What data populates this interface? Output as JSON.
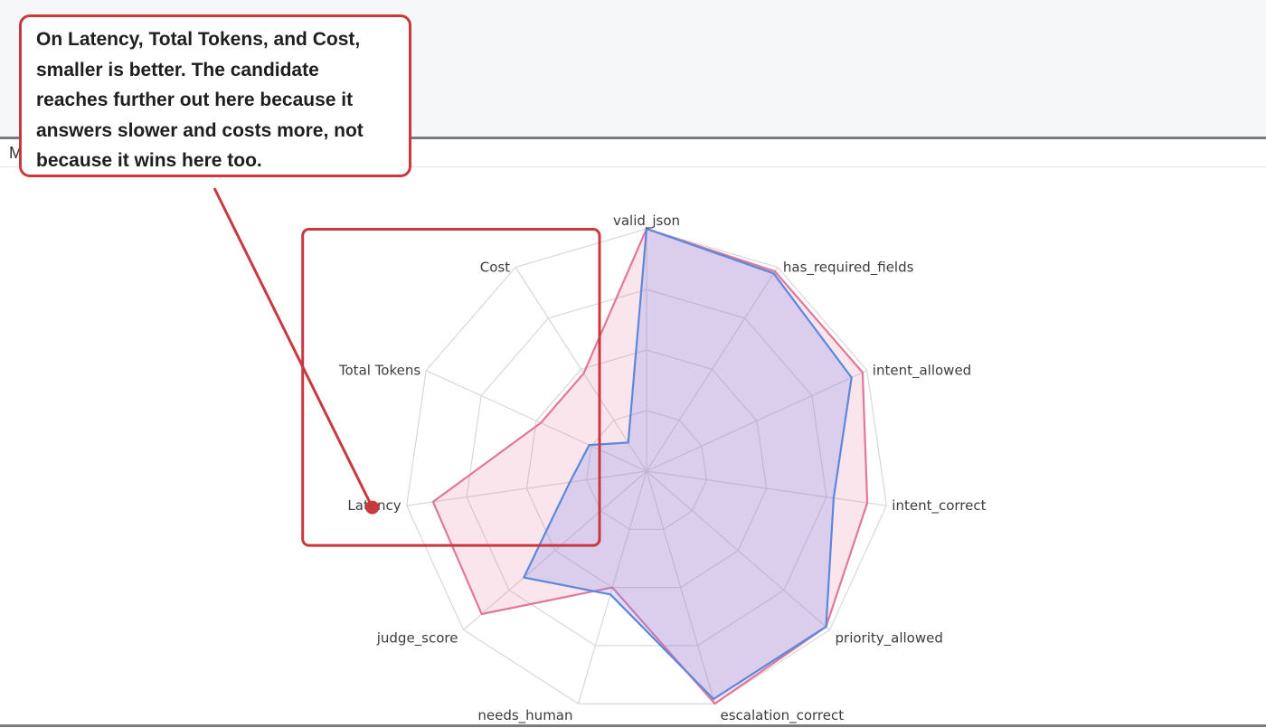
{
  "tab": {
    "label": "M"
  },
  "callout": {
    "text": "On Latency, Total Tokens, and Cost, smaller is better. The candidate reaches further out here because it answers slower and costs more, not because it wins here too."
  },
  "colors": {
    "baseline": "#5b87dd",
    "candidate": "#e07898",
    "candidate_fill": "rgba(232,112,150,0.18)",
    "baseline_fill": "rgba(120,140,235,0.25)",
    "grid": "#d8d8d8",
    "annotation": "#c9383f"
  },
  "chart_data": {
    "type": "radar",
    "title": "",
    "axes": [
      "valid_json",
      "has_required_fields",
      "intent_allowed",
      "intent_correct",
      "priority_allowed",
      "escalation_correct",
      "needs_human",
      "judge_score",
      "Latency",
      "Total Tokens",
      "Cost"
    ],
    "range": [
      0,
      1
    ],
    "grid_rings": 4,
    "series": [
      {
        "key": "candidate",
        "values": [
          1.0,
          0.98,
          0.98,
          0.92,
          0.98,
          1.0,
          0.5,
          0.9,
          0.89,
          0.48,
          0.48
        ]
      },
      {
        "key": "baseline",
        "values": [
          1.0,
          0.97,
          0.93,
          0.78,
          0.98,
          0.98,
          0.53,
          0.67,
          0.32,
          0.26,
          0.14
        ]
      }
    ],
    "highlight": {
      "axes": [
        "Latency",
        "Total Tokens",
        "Cost"
      ]
    }
  }
}
